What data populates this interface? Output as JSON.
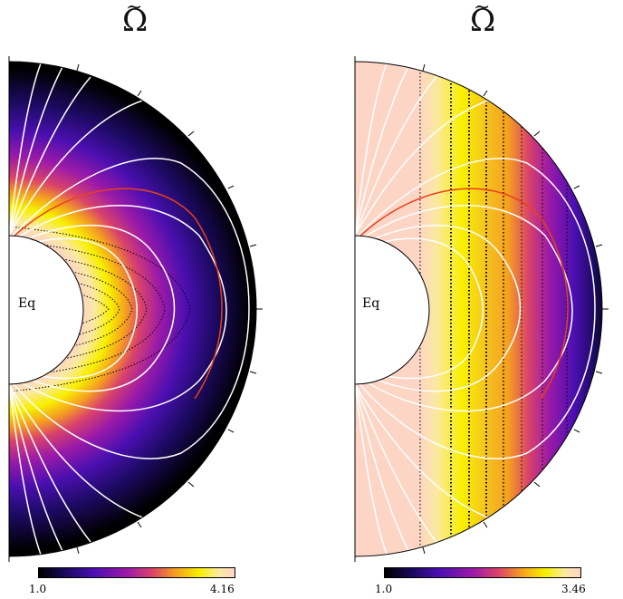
{
  "panels": [
    {
      "title": "Ω",
      "title_accent": "~",
      "equator_label": "Eq",
      "colorbar": {
        "min_label": "1.0",
        "max_label": "4.16"
      }
    },
    {
      "title": "Ω",
      "title_accent": "~",
      "equator_label": "Eq",
      "colorbar": {
        "min_label": "1.0",
        "max_label": "3.46"
      }
    }
  ],
  "colors": {
    "colormap": [
      "#000000",
      "#1a0a5e",
      "#4a0fb0",
      "#9b1aa8",
      "#d9436a",
      "#f5a020",
      "#f8f000",
      "#fbe9a0",
      "#fcd5c5"
    ],
    "field_lines": "#ffffff",
    "highlight_field_line": "#e8401a",
    "contours": "#000000"
  }
}
